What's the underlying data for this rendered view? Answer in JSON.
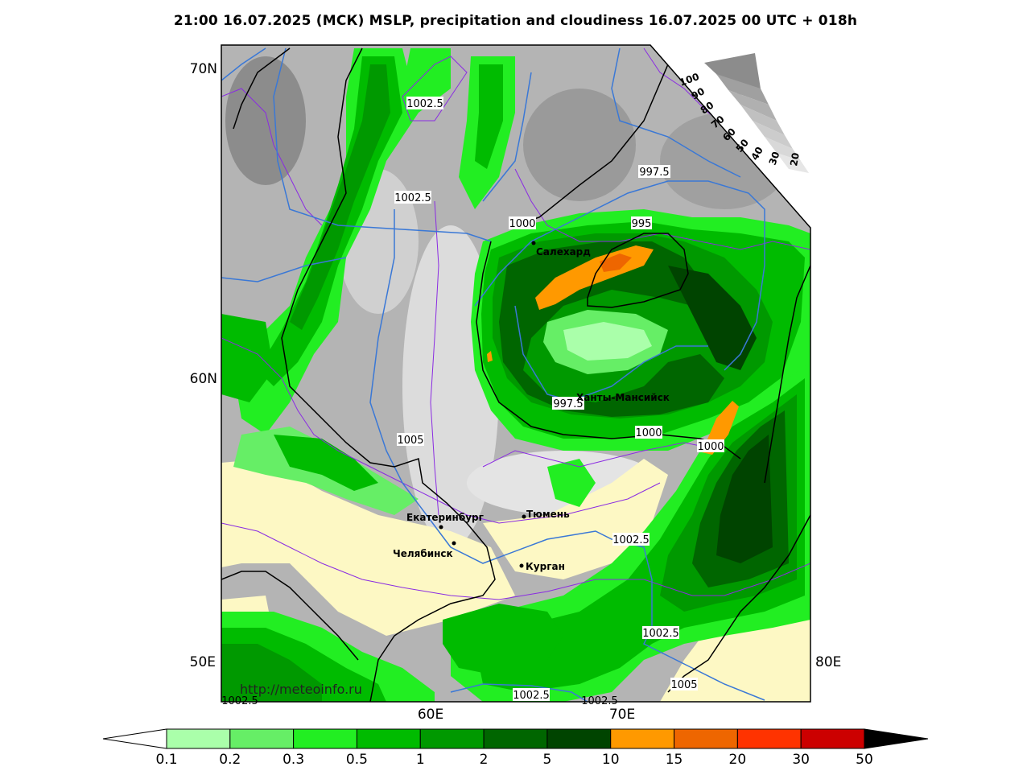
{
  "title": "21:00 16.07.2025 (МСК) MSLP, precipitation and cloudiness 16.07.2025 00 UTC + 018h",
  "watermark": "http://meteoinfo.ru",
  "lat_labels": [
    "70N",
    "60N",
    "50E"
  ],
  "lon_labels": [
    "60E",
    "70E",
    "80E"
  ],
  "cities": [
    {
      "name": "Салехард"
    },
    {
      "name": "Ханты-Мансийск"
    },
    {
      "name": "Екатеринбург"
    },
    {
      "name": "Тюмень"
    },
    {
      "name": "Челябинск"
    },
    {
      "name": "Курган"
    }
  ],
  "isobar_labels": [
    "1002.5",
    "1002.5",
    "997.5",
    "1000",
    "995",
    "997.5",
    "1005",
    "1000",
    "1000",
    "1002.5",
    "1002.5",
    "1005",
    "1002.5",
    "1002.5",
    "1002.5"
  ],
  "cloudiness_scale": [
    "100",
    "90",
    "80",
    "70",
    "60",
    "50",
    "40",
    "30",
    "20"
  ],
  "precip_legend": {
    "labels": [
      "0.1",
      "0.2",
      "0.3",
      "0.5",
      "1",
      "2",
      "5",
      "10",
      "15",
      "20",
      "30",
      "50"
    ],
    "colors": [
      "#aaffaa",
      "#66ee66",
      "#22ee22",
      "#00bb00",
      "#009900",
      "#006600",
      "#004400",
      "#ff9900",
      "#ee6600",
      "#ff3300",
      "#cc0000",
      "#990000"
    ]
  }
}
